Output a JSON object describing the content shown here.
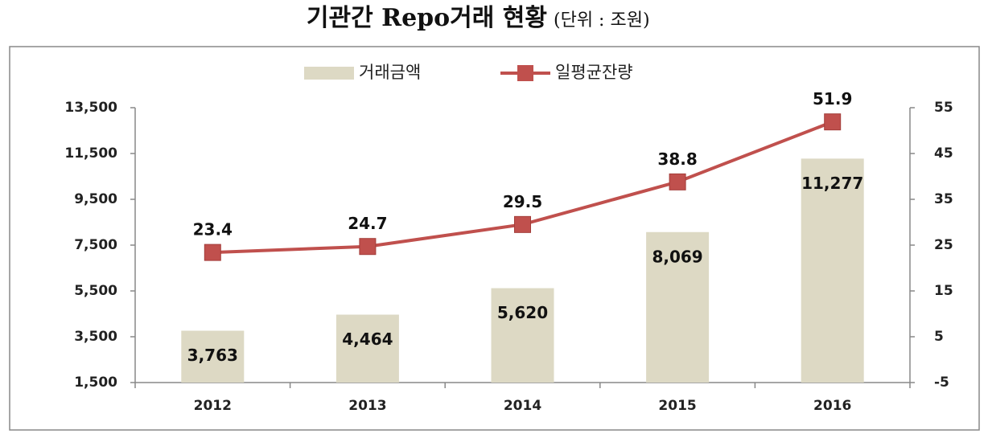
{
  "chart_data": {
    "type": "bar",
    "title": "기관간 Repo거래 현황",
    "subtitle": "(단위 : 조원)",
    "categories": [
      "2012",
      "2013",
      "2014",
      "2015",
      "2016"
    ],
    "series": [
      {
        "name": "거래금액",
        "type": "bar",
        "color": "#ddd9c4",
        "values": [
          3763,
          4464,
          5620,
          8069,
          11277
        ],
        "value_labels": [
          "3,763",
          "4,464",
          "5,620",
          "8,069",
          "11,277"
        ]
      },
      {
        "name": "일평균잔량",
        "type": "line",
        "axis": "y2",
        "color": "#c0504d",
        "values": [
          23.4,
          24.7,
          29.5,
          38.8,
          51.9
        ]
      }
    ],
    "ylim": [
      1500,
      13500
    ],
    "yticks": [
      {
        "value": 1500,
        "label": "1,500"
      },
      {
        "value": 3500,
        "label": "3,500"
      },
      {
        "value": 5500,
        "label": "5,500"
      },
      {
        "value": 7500,
        "label": "7,500"
      },
      {
        "value": 9500,
        "label": "9,500"
      },
      {
        "value": 11500,
        "label": "11,500"
      },
      {
        "value": 13500,
        "label": "13,500"
      }
    ],
    "y2lim": [
      -5,
      55
    ],
    "y2ticks": [
      -5,
      5,
      15,
      25,
      35,
      45,
      55
    ],
    "grid": false,
    "legend": "top"
  }
}
